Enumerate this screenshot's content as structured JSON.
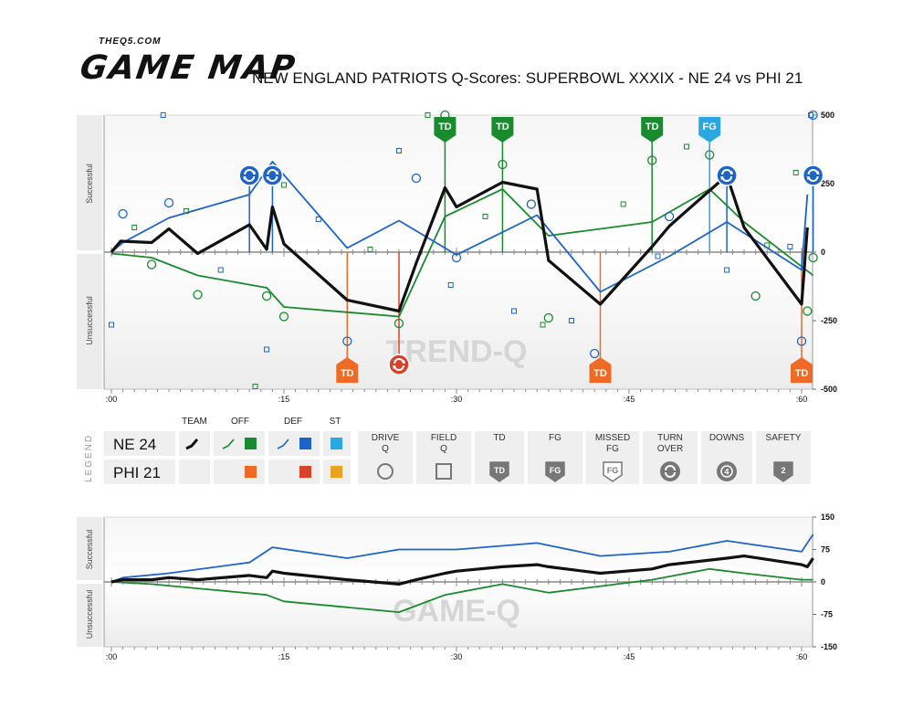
{
  "header": {
    "site": "THEQ5.COM",
    "brand": "GAME MAP",
    "title": "NEW ENGLAND PATRIOTS Q-Scores: SUPERBOWL XXXIX - NE 24 vs PHI 21"
  },
  "colors": {
    "team": "#111111",
    "off": "#1a8a2e",
    "def": "#1e64c8",
    "st": "#2aa7e0",
    "opp_off": "#ef6a25",
    "opp_def": "#d9422a",
    "opp_st": "#e9a21f",
    "grid": "#c8c8c8"
  },
  "legend": {
    "label": "LEGEND",
    "headers": {
      "team": "TEAM",
      "off": "OFF",
      "def": "DEF",
      "st": "ST"
    },
    "teams": [
      {
        "name": "NE 24"
      },
      {
        "name": "PHI 21"
      }
    ],
    "keys": [
      {
        "label": "DRIVE\nQ",
        "icon": "circle-icon"
      },
      {
        "label": "FIELD\nQ",
        "icon": "square-icon"
      },
      {
        "label": "TD",
        "icon": "td-badge-icon",
        "glyph": "TD"
      },
      {
        "label": "FG",
        "icon": "fg-badge-icon",
        "glyph": "FG"
      },
      {
        "label": "MISSED\nFG",
        "icon": "missed-fg-badge-icon",
        "glyph": "FG"
      },
      {
        "label": "TURN\nOVER",
        "icon": "turnover-icon"
      },
      {
        "label": "DOWNS",
        "icon": "downs-icon",
        "glyph": "4"
      },
      {
        "label": "SAFETY",
        "icon": "safety-badge-icon",
        "glyph": "2"
      }
    ]
  },
  "chart_data": [
    {
      "type": "line",
      "name": "trend-q",
      "watermark": "TREND-Q",
      "ylabel_top": "Successful",
      "ylabel_bottom": "Unsuccessful",
      "xlim": [
        0,
        60
      ],
      "ylim": [
        -500,
        500
      ],
      "x_ticks": [
        ":00",
        ":15",
        ":30",
        ":45",
        ":60"
      ],
      "x_tick_values": [
        0,
        15,
        30,
        45,
        60
      ],
      "y_ticks": [
        500,
        250,
        0,
        -250,
        -500
      ],
      "series": [
        {
          "key": "team",
          "points": [
            [
              0,
              0
            ],
            [
              0.8,
              40
            ],
            [
              3.5,
              35
            ],
            [
              5,
              85
            ],
            [
              7.5,
              -5
            ],
            [
              12,
              100
            ],
            [
              13.5,
              10
            ],
            [
              14,
              165
            ],
            [
              15,
              30
            ],
            [
              20.5,
              -175
            ],
            [
              25,
              -215
            ],
            [
              26.5,
              -40
            ],
            [
              29,
              235
            ],
            [
              30,
              165
            ],
            [
              34,
              255
            ],
            [
              37,
              230
            ],
            [
              38,
              -30
            ],
            [
              42.5,
              -190
            ],
            [
              47,
              20
            ],
            [
              48.5,
              95
            ],
            [
              53.5,
              280
            ],
            [
              55,
              90
            ],
            [
              60,
              -190
            ],
            [
              60.5,
              90
            ]
          ]
        },
        {
          "key": "off",
          "points": [
            [
              0,
              -5
            ],
            [
              3.5,
              -20
            ],
            [
              7.5,
              -85
            ],
            [
              13.5,
              -130
            ],
            [
              15,
              -200
            ],
            [
              25,
              -235
            ],
            [
              29,
              130
            ],
            [
              34,
              230
            ],
            [
              38,
              60
            ],
            [
              47,
              110
            ],
            [
              52,
              230
            ],
            [
              55,
              110
            ],
            [
              61,
              -85
            ]
          ]
        },
        {
          "key": "def",
          "points": [
            [
              0,
              0
            ],
            [
              1,
              35
            ],
            [
              5,
              125
            ],
            [
              12,
              210
            ],
            [
              14,
              330
            ],
            [
              20.5,
              15
            ],
            [
              25,
              115
            ],
            [
              30,
              -10
            ],
            [
              37,
              135
            ],
            [
              42.5,
              -145
            ],
            [
              48.5,
              -15
            ],
            [
              53.5,
              110
            ],
            [
              60,
              -65
            ],
            [
              60.5,
              210
            ]
          ]
        }
      ],
      "drive_q": [
        {
          "x": 1,
          "y": 140,
          "c": "def"
        },
        {
          "x": 5,
          "y": 180,
          "c": "def"
        },
        {
          "x": 12,
          "y": 270,
          "c": "def"
        },
        {
          "x": 20.5,
          "y": -325,
          "c": "def"
        },
        {
          "x": 26.5,
          "y": 270,
          "c": "def"
        },
        {
          "x": 30,
          "y": -20,
          "c": "def"
        },
        {
          "x": 36.5,
          "y": 175,
          "c": "def"
        },
        {
          "x": 42,
          "y": -370,
          "c": "def"
        },
        {
          "x": 48.5,
          "y": 130,
          "c": "def"
        },
        {
          "x": 53.5,
          "y": 280,
          "c": "def"
        },
        {
          "x": 60,
          "y": -325,
          "c": "def"
        },
        {
          "x": 61,
          "y": 500,
          "c": "def"
        },
        {
          "x": 3.5,
          "y": -45,
          "c": "off"
        },
        {
          "x": 7.5,
          "y": -155,
          "c": "off"
        },
        {
          "x": 13.5,
          "y": -160,
          "c": "off"
        },
        {
          "x": 15,
          "y": -235,
          "c": "off"
        },
        {
          "x": 25,
          "y": -260,
          "c": "off"
        },
        {
          "x": 29,
          "y": 500,
          "c": "off"
        },
        {
          "x": 34,
          "y": 320,
          "c": "off"
        },
        {
          "x": 38,
          "y": -240,
          "c": "off"
        },
        {
          "x": 47,
          "y": 335,
          "c": "off"
        },
        {
          "x": 52,
          "y": 355,
          "c": "off"
        },
        {
          "x": 56,
          "y": -160,
          "c": "off"
        },
        {
          "x": 60.5,
          "y": -215,
          "c": "off"
        },
        {
          "x": 61,
          "y": -20,
          "c": "off"
        }
      ],
      "field_q": [
        {
          "x": 0,
          "y": -265,
          "c": "def"
        },
        {
          "x": 4.5,
          "y": 500,
          "c": "def"
        },
        {
          "x": 9.5,
          "y": -65,
          "c": "def"
        },
        {
          "x": 13.5,
          "y": -355,
          "c": "def"
        },
        {
          "x": 18,
          "y": 120,
          "c": "def"
        },
        {
          "x": 25,
          "y": 370,
          "c": "def"
        },
        {
          "x": 29.5,
          "y": -120,
          "c": "def"
        },
        {
          "x": 35,
          "y": -215,
          "c": "def"
        },
        {
          "x": 40,
          "y": -250,
          "c": "def"
        },
        {
          "x": 47.5,
          "y": -15,
          "c": "def"
        },
        {
          "x": 53.5,
          "y": -65,
          "c": "def"
        },
        {
          "x": 59,
          "y": 20,
          "c": "def"
        },
        {
          "x": 60.8,
          "y": 500,
          "c": "def"
        },
        {
          "x": 2,
          "y": 90,
          "c": "off"
        },
        {
          "x": 6.5,
          "y": 150,
          "c": "off"
        },
        {
          "x": 12.5,
          "y": -490,
          "c": "off"
        },
        {
          "x": 15,
          "y": 245,
          "c": "off"
        },
        {
          "x": 22.5,
          "y": 10,
          "c": "off"
        },
        {
          "x": 27.5,
          "y": 500,
          "c": "off"
        },
        {
          "x": 32.5,
          "y": 130,
          "c": "off"
        },
        {
          "x": 37.5,
          "y": -265,
          "c": "off"
        },
        {
          "x": 44.5,
          "y": 175,
          "c": "off"
        },
        {
          "x": 50,
          "y": 385,
          "c": "off"
        },
        {
          "x": 57,
          "y": 25,
          "c": "off"
        },
        {
          "x": 59.5,
          "y": 290,
          "c": "off"
        }
      ],
      "events": [
        {
          "x": 12,
          "y": 280,
          "kind": "turnover",
          "c": "def"
        },
        {
          "x": 14,
          "y": 280,
          "kind": "turnover",
          "c": "def"
        },
        {
          "x": 20.5,
          "y": -430,
          "kind": "TD",
          "c": "opp_off"
        },
        {
          "x": 25,
          "y": -410,
          "kind": "turnover",
          "c": "opp_def"
        },
        {
          "x": 29,
          "y": 440,
          "kind": "TD",
          "c": "off"
        },
        {
          "x": 34,
          "y": 440,
          "kind": "TD",
          "c": "off"
        },
        {
          "x": 42.5,
          "y": -430,
          "kind": "TD",
          "c": "opp_off"
        },
        {
          "x": 47,
          "y": 440,
          "kind": "TD",
          "c": "off"
        },
        {
          "x": 52,
          "y": 440,
          "kind": "FG",
          "c": "st"
        },
        {
          "x": 53.5,
          "y": 280,
          "kind": "turnover",
          "c": "def"
        },
        {
          "x": 60,
          "y": -430,
          "kind": "TD",
          "c": "opp_off"
        },
        {
          "x": 61,
          "y": 280,
          "kind": "turnover",
          "c": "def"
        }
      ],
      "labels": {
        "TD": "TD",
        "FG": "FG"
      }
    },
    {
      "type": "line",
      "name": "game-q",
      "watermark": "GAME-Q",
      "ylabel_top": "Successful",
      "ylabel_bottom": "Unsuccessful",
      "xlim": [
        0,
        60
      ],
      "ylim": [
        -150,
        150
      ],
      "x_ticks": [
        ":00",
        ":15",
        ":30",
        ":45",
        ":60"
      ],
      "x_tick_values": [
        0,
        15,
        30,
        45,
        60
      ],
      "y_ticks": [
        150,
        75,
        0,
        -75,
        -150
      ],
      "series": [
        {
          "key": "team",
          "points": [
            [
              0,
              0
            ],
            [
              1,
              5
            ],
            [
              3.5,
              5
            ],
            [
              5,
              10
            ],
            [
              7.5,
              5
            ],
            [
              12,
              15
            ],
            [
              13.5,
              10
            ],
            [
              14,
              25
            ],
            [
              15,
              20
            ],
            [
              20.5,
              5
            ],
            [
              25,
              -5
            ],
            [
              26.5,
              5
            ],
            [
              29,
              20
            ],
            [
              30,
              25
            ],
            [
              34,
              35
            ],
            [
              37,
              40
            ],
            [
              38,
              35
            ],
            [
              42.5,
              20
            ],
            [
              47,
              30
            ],
            [
              48.5,
              40
            ],
            [
              53.5,
              55
            ],
            [
              55,
              60
            ],
            [
              60,
              40
            ],
            [
              60.5,
              35
            ],
            [
              61,
              55
            ]
          ]
        },
        {
          "key": "off",
          "points": [
            [
              0,
              0
            ],
            [
              3.5,
              -5
            ],
            [
              7.5,
              -15
            ],
            [
              13.5,
              -30
            ],
            [
              15,
              -45
            ],
            [
              25,
              -70
            ],
            [
              29,
              -30
            ],
            [
              34,
              -5
            ],
            [
              38,
              -25
            ],
            [
              47,
              5
            ],
            [
              52,
              30
            ],
            [
              55,
              20
            ],
            [
              60,
              5
            ],
            [
              61,
              5
            ]
          ]
        },
        {
          "key": "def",
          "points": [
            [
              0,
              0
            ],
            [
              1,
              10
            ],
            [
              5,
              20
            ],
            [
              12,
              45
            ],
            [
              14,
              80
            ],
            [
              20.5,
              55
            ],
            [
              25,
              75
            ],
            [
              30,
              75
            ],
            [
              37,
              90
            ],
            [
              42.5,
              60
            ],
            [
              48.5,
              70
            ],
            [
              53.5,
              95
            ],
            [
              60,
              70
            ],
            [
              61,
              110
            ]
          ]
        }
      ]
    }
  ]
}
